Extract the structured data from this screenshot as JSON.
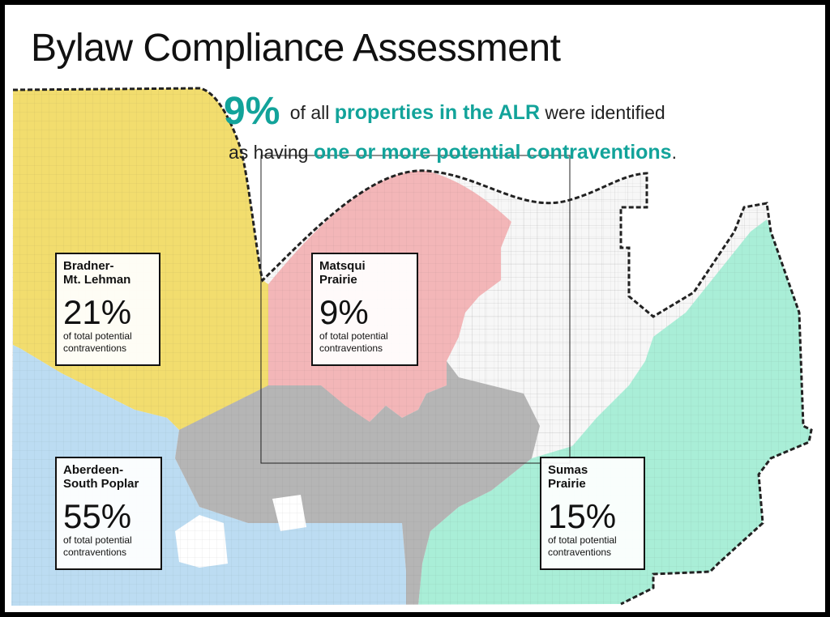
{
  "title": "Bylaw Compliance Assessment",
  "headline": {
    "percent": "9%",
    "text_1": "of all",
    "highlight_1": "properties in the ALR",
    "text_2": "were identified",
    "text_3": "as having",
    "highlight_2": "one or more potential contraventions",
    "text_4": "."
  },
  "colors": {
    "accent_teal": "#12a39a",
    "bradner_yellow": "#f2dd6e",
    "matsqui_pink": "#f3b6b8",
    "aberdeen_blue": "#bcdcf2",
    "sumas_green": "#a9eed7",
    "urban_gray": "#b5b5b5"
  },
  "regions": [
    {
      "id": "bradner",
      "name": "Bradner-\nMt. Lehman",
      "percent": "21%",
      "value_percent": 21,
      "caption": "of total potential\ncontraventions"
    },
    {
      "id": "matsqui",
      "name": "Matsqui\nPrairie",
      "percent": "9%",
      "value_percent": 9,
      "caption": "of total potential\ncontraventions"
    },
    {
      "id": "aberdeen",
      "name": "Aberdeen-\nSouth Poplar",
      "percent": "55%",
      "value_percent": 55,
      "caption": "of total potential\ncontraventions"
    },
    {
      "id": "sumas",
      "name": "Sumas\nPrairie",
      "percent": "15%",
      "value_percent": 15,
      "caption": "of total potential\ncontraventions"
    }
  ]
}
